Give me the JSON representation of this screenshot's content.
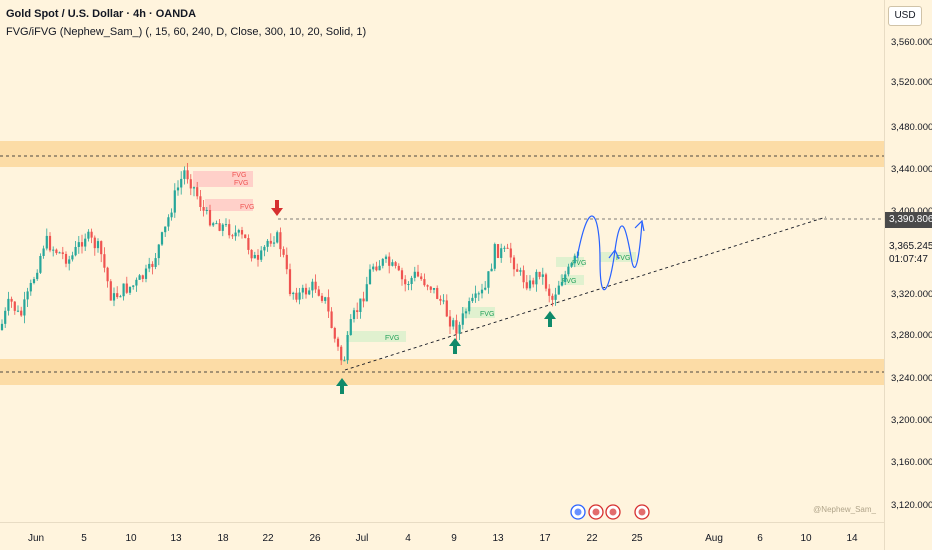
{
  "header": {
    "symbol_line": "Gold Spot / U.S. Dollar · 4h · OANDA",
    "indicator_line": "FVG/iFVG (Nephew_Sam_) (, 15, 60, 240, D, Close, 300, 10, 20, Solid, 1)"
  },
  "price_axis": {
    "currency": "USD",
    "ticks": [
      "3,560.000",
      "3,520.000",
      "3,480.000",
      "3,440.000",
      "3,400.000",
      "3,320.000",
      "3,280.000",
      "3,240.000",
      "3,200.000",
      "3,160.000",
      "3,120.000"
    ],
    "current_price": "3,390.806",
    "last_price": "3,365.245",
    "countdown": "01:07:47"
  },
  "time_axis": {
    "labels": [
      "Jun",
      "5",
      "10",
      "13",
      "18",
      "22",
      "26",
      "Jul",
      "4",
      "9",
      "13",
      "17",
      "22",
      "25",
      "Aug",
      "6",
      "10",
      "14"
    ]
  },
  "annotations": {
    "fvg_label": "FVG",
    "watermark": "@Nephew_Sam_"
  },
  "colors": {
    "bull": "#26a69a",
    "bear": "#ef5350",
    "zone": "#fcd9a0",
    "arrow_up": "#0f8a6a",
    "arrow_down": "#d62f2f",
    "projection": "#2962ff"
  },
  "events": [
    {
      "icon": "flash-icon",
      "color": "#2962ff"
    },
    {
      "icon": "us-flag-icon",
      "color": "#d62f2f"
    },
    {
      "icon": "us-flag-icon",
      "color": "#d62f2f"
    },
    {
      "icon": "us-flag-icon",
      "color": "#d62f2f"
    }
  ]
}
